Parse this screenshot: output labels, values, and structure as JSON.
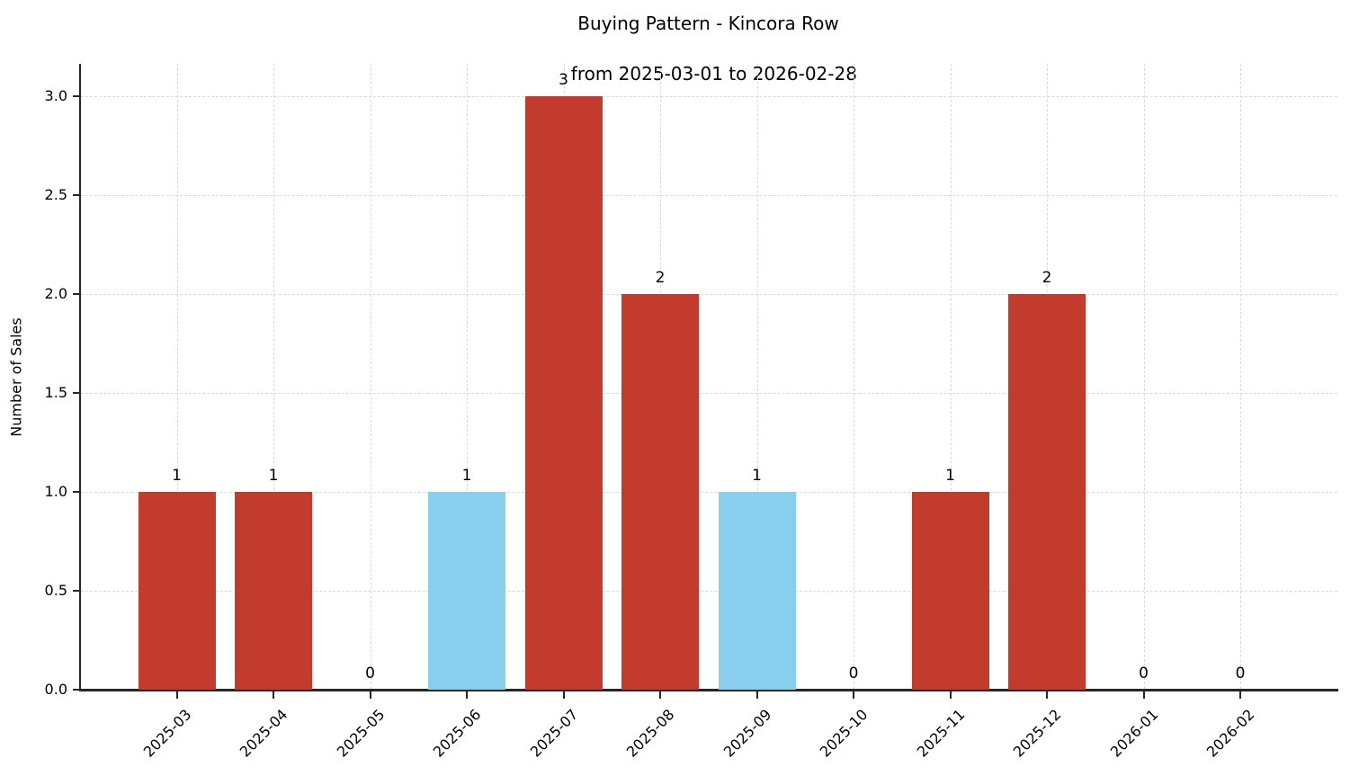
{
  "chart_data": {
    "type": "bar",
    "title": "Buying Pattern - Kincora Row",
    "subtitle": "from 2025-03-01 to 2026-02-28",
    "xlabel": "",
    "ylabel": "Number of Sales",
    "categories": [
      "2025-03",
      "2025-04",
      "2025-05",
      "2025-06",
      "2025-07",
      "2025-08",
      "2025-09",
      "2025-10",
      "2025-11",
      "2025-12",
      "2026-01",
      "2026-02"
    ],
    "values": [
      1,
      1,
      0,
      1,
      3,
      2,
      1,
      0,
      1,
      2,
      0,
      0
    ],
    "bar_labels": [
      "1",
      "1",
      "0",
      "1",
      "3",
      "2",
      "1",
      "0",
      "1",
      "2",
      "0",
      "0"
    ],
    "bar_colors": [
      "#c33b2c",
      "#c33b2c",
      "#c33b2c",
      "#87ceef",
      "#c33b2c",
      "#c33b2c",
      "#87ceef",
      "#c33b2c",
      "#c33b2c",
      "#c33b2c",
      "#c33b2c",
      "#c33b2c"
    ],
    "yticks": [
      "0.0",
      "0.5",
      "1.0",
      "1.5",
      "2.0",
      "2.5",
      "3.0"
    ],
    "ytick_values": [
      0,
      0.5,
      1,
      1.5,
      2,
      2.5,
      3
    ],
    "ylim": [
      0,
      3.17
    ],
    "grid": true,
    "legend_position": "none",
    "colors": {
      "bar_red": "#c33b2c",
      "bar_blue": "#87ceef",
      "grid": "#d9d9d9",
      "spine": "#262626",
      "text": "#000000",
      "background": "#ffffff"
    }
  }
}
